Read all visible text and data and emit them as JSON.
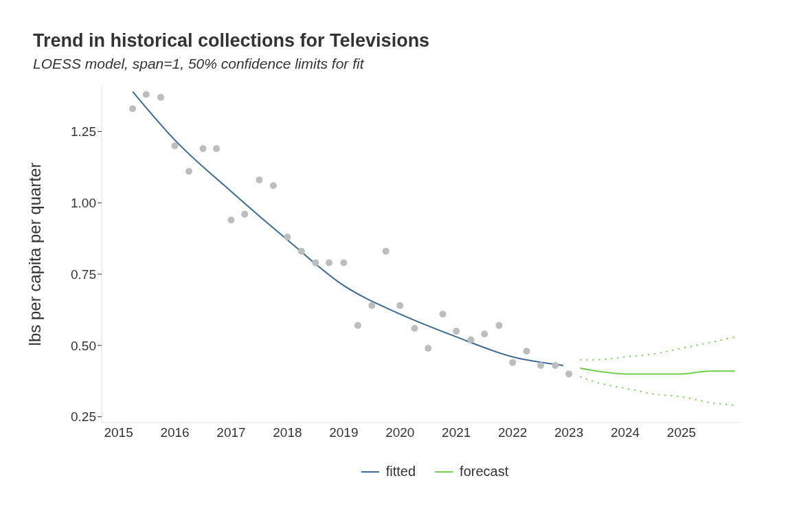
{
  "chart_data": {
    "type": "scatter",
    "title": "Trend in historical collections for Televisions",
    "subtitle": "LOESS model, span=1, 50% confidence limits for fit",
    "ylabel": "lbs per capita per quarter",
    "xlim": [
      2014.7,
      2026.05
    ],
    "ylim": [
      0.23,
      1.41
    ],
    "xticks": [
      2015,
      2016,
      2017,
      2018,
      2019,
      2020,
      2021,
      2022,
      2023,
      2024,
      2025
    ],
    "yticks": [
      0.25,
      {
        "value": 0.5,
        "label": "0.50"
      },
      0.75,
      {
        "value": 1.0,
        "label": "1.00"
      },
      1.25
    ],
    "legend": "bottom",
    "series": [
      {
        "color": "#bdbdbd",
        "marker": "circle",
        "x": [
          2015.25,
          2015.49,
          2015.75,
          2016.0,
          2016.25,
          2016.5,
          2016.74,
          2017.0,
          2017.24,
          2017.5,
          2017.75,
          2018.0,
          2018.25,
          2018.5,
          2018.74,
          2019.0,
          2019.25,
          2019.5,
          2019.75,
          2020.0,
          2020.26,
          2020.5,
          2020.76,
          2021.0,
          2021.26,
          2021.5,
          2021.76,
          2022.0,
          2022.25,
          2022.5,
          2022.76,
          2023.0
        ],
        "values": [
          1.33,
          1.38,
          1.37,
          1.2,
          1.11,
          1.19,
          1.19,
          0.94,
          0.96,
          1.08,
          1.06,
          0.88,
          0.83,
          0.79,
          0.79,
          0.79,
          0.57,
          0.64,
          0.83,
          0.64,
          0.56,
          0.49,
          0.61,
          0.55,
          0.52,
          0.54,
          0.57,
          0.44,
          0.48,
          0.43,
          0.43,
          0.4
        ]
      },
      {
        "type": "line",
        "name": "fitted",
        "color": "#3a6a96",
        "line_style": "solid",
        "x": [
          2015.25,
          2016,
          2017,
          2018,
          2019,
          2020,
          2021,
          2022,
          2022.9
        ],
        "values": [
          1.39,
          1.22,
          1.04,
          0.87,
          0.71,
          0.61,
          0.53,
          0.46,
          0.43
        ]
      },
      {
        "type": "line",
        "name": "forecast",
        "color": "#6fd04a",
        "line_style": "solid",
        "x": [
          2023.2,
          2023.5,
          2024,
          2024.5,
          2025,
          2025.5,
          2025.95
        ],
        "values": [
          0.42,
          0.41,
          0.4,
          0.4,
          0.4,
          0.41,
          0.41
        ]
      },
      {
        "type": "line",
        "color": "#6fd04a",
        "line_style": "dotted",
        "x": [
          2023.2,
          2023.5,
          2024,
          2024.5,
          2025,
          2025.5,
          2025.95
        ],
        "values": [
          0.45,
          0.45,
          0.46,
          0.47,
          0.49,
          0.51,
          0.53
        ]
      },
      {
        "type": "line",
        "color": "#6fd04a",
        "line_style": "dotted",
        "x": [
          2023.2,
          2023.5,
          2024,
          2024.5,
          2025,
          2025.5,
          2025.95
        ],
        "values": [
          0.39,
          0.37,
          0.35,
          0.33,
          0.32,
          0.3,
          0.29
        ]
      }
    ]
  }
}
